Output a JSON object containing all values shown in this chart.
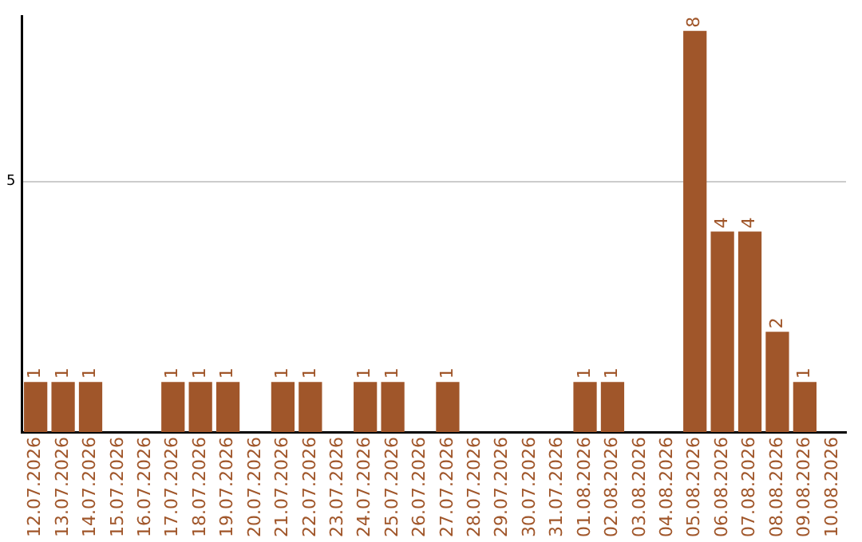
{
  "chart_data": {
    "type": "bar",
    "categories": [
      "12.07.2026",
      "13.07.2026",
      "14.07.2026",
      "15.07.2026",
      "16.07.2026",
      "17.07.2026",
      "18.07.2026",
      "19.07.2026",
      "20.07.2026",
      "21.07.2026",
      "22.07.2026",
      "23.07.2026",
      "24.07.2026",
      "25.07.2026",
      "26.07.2026",
      "27.07.2026",
      "28.07.2026",
      "29.07.2026",
      "30.07.2026",
      "31.07.2026",
      "01.08.2026",
      "02.08.2026",
      "03.08.2026",
      "04.08.2026",
      "05.08.2026",
      "06.08.2026",
      "07.08.2026",
      "08.08.2026",
      "09.08.2026",
      "10.08.2026"
    ],
    "values": [
      1,
      1,
      1,
      0,
      0,
      1,
      1,
      1,
      0,
      1,
      1,
      0,
      1,
      1,
      0,
      1,
      0,
      0,
      0,
      0,
      1,
      1,
      0,
      0,
      8,
      4,
      4,
      2,
      1,
      0
    ],
    "value_labels": [
      "1",
      "1",
      "1",
      null,
      null,
      "1",
      "1",
      "1",
      null,
      "1",
      "1",
      null,
      "1",
      "1",
      null,
      "1",
      null,
      null,
      null,
      null,
      "1",
      "1",
      null,
      null,
      "8",
      "4",
      "4",
      "2",
      "1",
      null
    ],
    "color": "#a0562a",
    "ylim": [
      0,
      8.3
    ],
    "yticks": [
      5
    ],
    "grid": "y",
    "legend": false
  }
}
